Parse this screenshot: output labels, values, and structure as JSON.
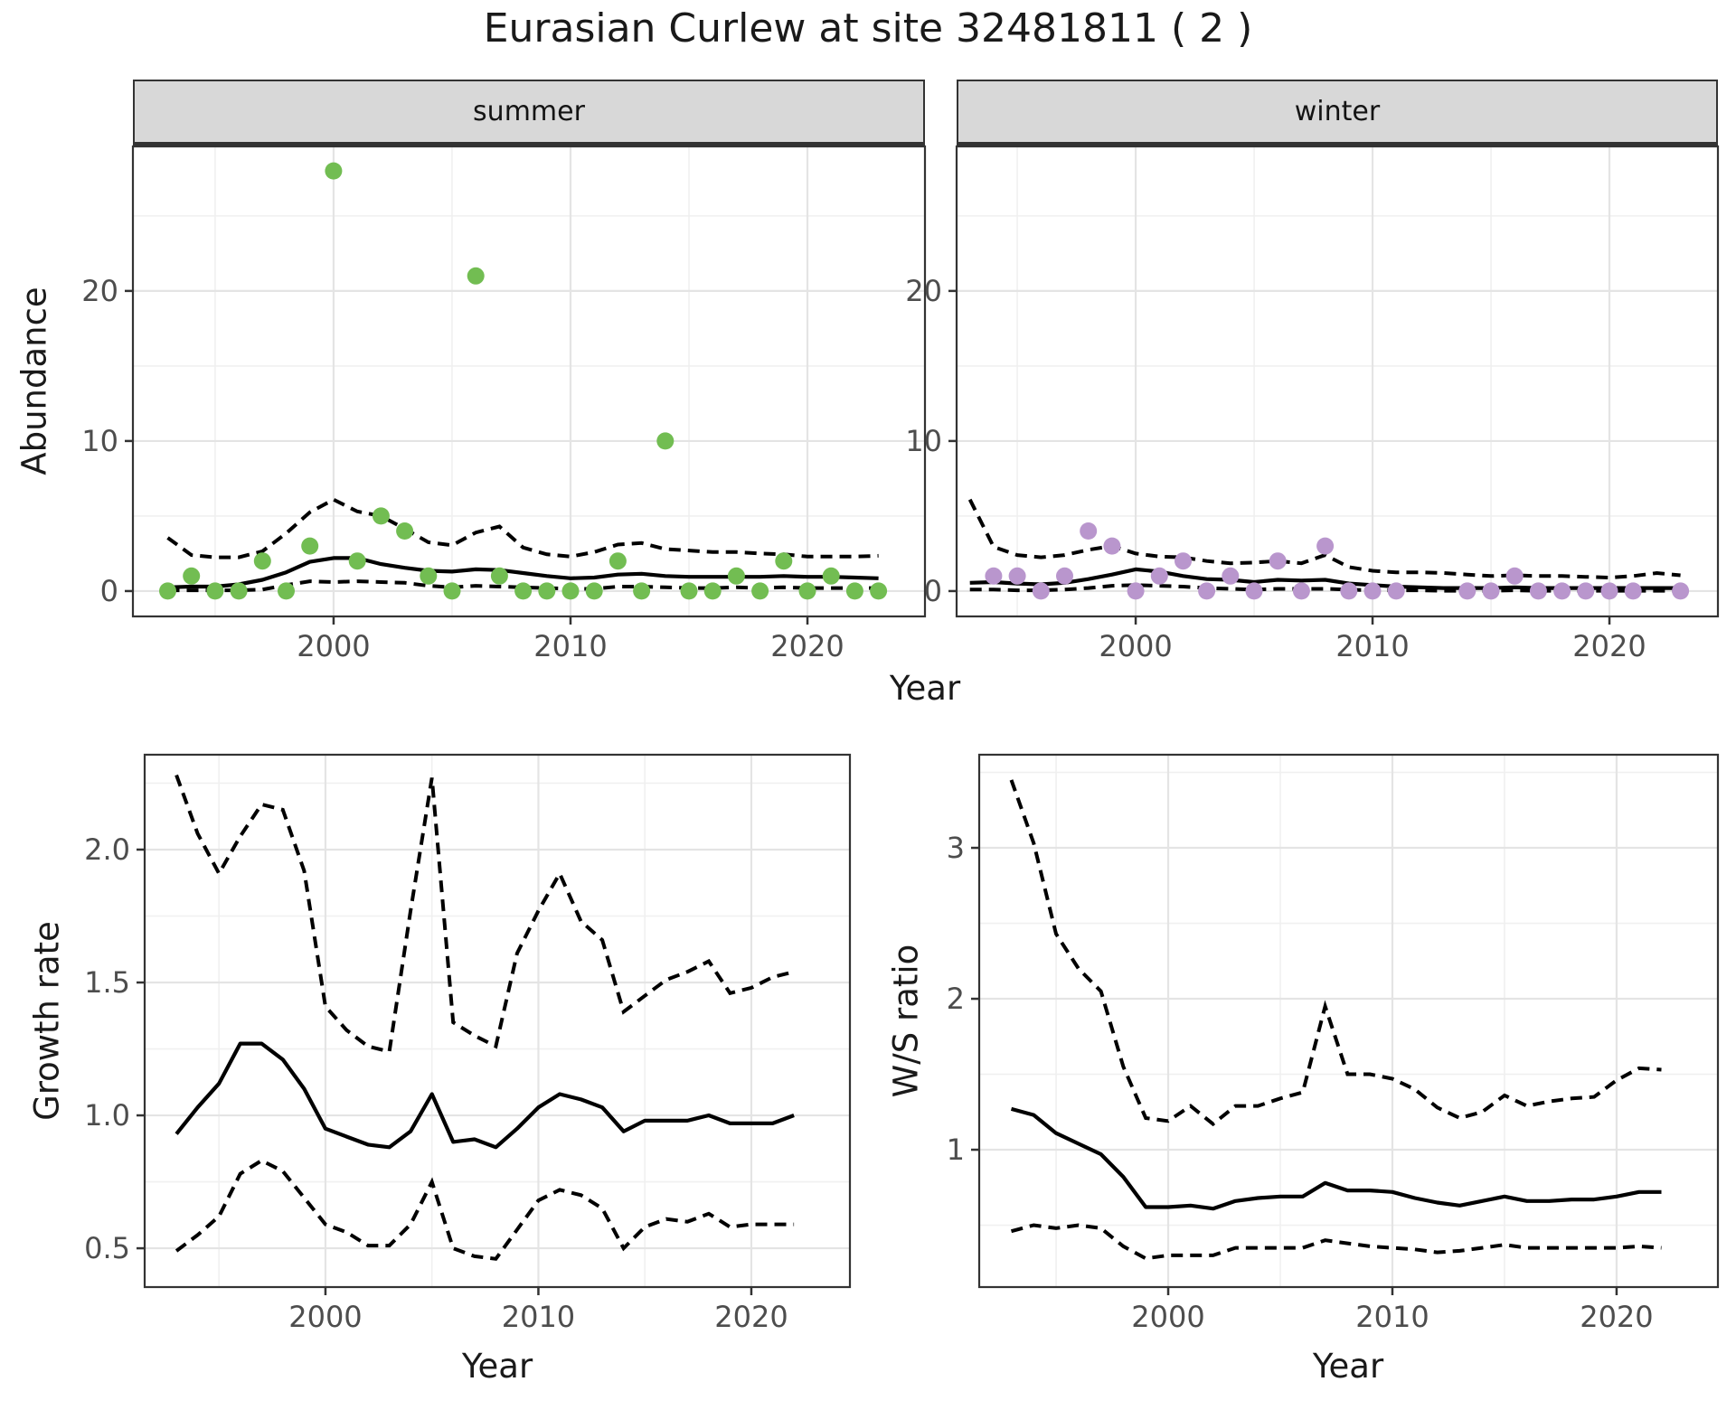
{
  "title": "Eurasian Curlew at site 32481811 ( 2 )",
  "facets": [
    {
      "label": "summer"
    },
    {
      "label": "winter"
    }
  ],
  "axes": {
    "x": "Year",
    "abundance": "Abundance",
    "growth": "Growth rate",
    "ws": "W/S ratio"
  },
  "colors": {
    "summer_point": "#72BD52",
    "winter_point": "#B996CD",
    "line": "#000000",
    "grid_major": "#e4e4e4",
    "grid_minor": "#f0f0f0",
    "panel_border": "#333333",
    "tick_text": "#4d4d4d",
    "strip_bg": "#d8d8d8"
  },
  "chart_data": [
    {
      "id": "abundance_summer",
      "type": "scatter",
      "facet": "summer",
      "xlabel": "Year",
      "ylabel": "Abundance",
      "grid": true,
      "legend": "none",
      "point_color": "#72BD52",
      "xlim": [
        1991.53,
        2024.96
      ],
      "ylim": [
        -1.69,
        29.63
      ],
      "x_major": [
        2000,
        2010,
        2020
      ],
      "x_minor": [
        1995,
        2005,
        2015
      ],
      "y_major": [
        0,
        10,
        20
      ],
      "y_minor": [
        5,
        15,
        25
      ],
      "x_tick_labels": [
        "2000",
        "2010",
        "2020"
      ],
      "y_tick_labels": [
        "0",
        "10",
        "20"
      ],
      "points": {
        "years": [
          1993,
          1994,
          1995,
          1996,
          1997,
          1998,
          1999,
          2000,
          2001,
          2002,
          2003,
          2004,
          2005,
          2006,
          2007,
          2008,
          2009,
          2010,
          2011,
          2012,
          2013,
          2014,
          2015,
          2016,
          2017,
          2018,
          2019,
          2020,
          2021,
          2022,
          2023
        ],
        "values": [
          0,
          1,
          0,
          0,
          2,
          0,
          3,
          28,
          2,
          5,
          4,
          1,
          0,
          21,
          1,
          0,
          0,
          0,
          0,
          2,
          0,
          10,
          0,
          0,
          1,
          0,
          2,
          0,
          1,
          0,
          0
        ]
      },
      "mean": {
        "years": [
          1993,
          1994,
          1995,
          1996,
          1997,
          1998,
          1999,
          2000,
          2001,
          2002,
          2003,
          2004,
          2005,
          2006,
          2007,
          2008,
          2009,
          2010,
          2011,
          2012,
          2013,
          2014,
          2015,
          2016,
          2017,
          2018,
          2019,
          2020,
          2021,
          2022,
          2023
        ],
        "values": [
          0.25,
          0.3,
          0.3,
          0.45,
          0.75,
          1.25,
          1.95,
          2.2,
          2.2,
          1.8,
          1.55,
          1.35,
          1.3,
          1.45,
          1.4,
          1.2,
          1.0,
          0.85,
          0.9,
          1.1,
          1.15,
          1.0,
          0.95,
          0.95,
          0.95,
          0.95,
          1.0,
          0.95,
          0.95,
          0.9,
          0.85
        ]
      },
      "upper": {
        "years": [
          1993,
          1994,
          1995,
          1996,
          1997,
          1998,
          1999,
          2000,
          2001,
          2002,
          2003,
          2004,
          2005,
          2006,
          2007,
          2008,
          2009,
          2010,
          2011,
          2012,
          2013,
          2014,
          2015,
          2016,
          2017,
          2018,
          2019,
          2020,
          2021,
          2022,
          2023
        ],
        "values": [
          3.55,
          2.4,
          2.25,
          2.25,
          2.65,
          3.85,
          5.25,
          6.1,
          5.3,
          5.0,
          4.15,
          3.25,
          3.05,
          3.9,
          4.3,
          2.9,
          2.45,
          2.3,
          2.6,
          3.1,
          3.2,
          2.8,
          2.7,
          2.6,
          2.6,
          2.5,
          2.45,
          2.3,
          2.3,
          2.3,
          2.35
        ]
      },
      "lower": {
        "years": [
          1993,
          1994,
          1995,
          1996,
          1997,
          1998,
          1999,
          2000,
          2001,
          2002,
          2003,
          2004,
          2005,
          2006,
          2007,
          2008,
          2009,
          2010,
          2011,
          2012,
          2013,
          2014,
          2015,
          2016,
          2017,
          2018,
          2019,
          2020,
          2021,
          2022,
          2023
        ],
        "values": [
          0.05,
          0.05,
          0.05,
          0.05,
          0.1,
          0.4,
          0.65,
          0.6,
          0.65,
          0.6,
          0.55,
          0.35,
          0.25,
          0.35,
          0.3,
          0.25,
          0.2,
          0.15,
          0.15,
          0.3,
          0.3,
          0.25,
          0.2,
          0.2,
          0.25,
          0.2,
          0.25,
          0.2,
          0.2,
          0.2,
          0.2
        ]
      }
    },
    {
      "id": "abundance_winter",
      "type": "scatter",
      "facet": "winter",
      "xlabel": "Year",
      "ylabel": "Abundance",
      "grid": true,
      "legend": "none",
      "point_color": "#B996CD",
      "xlim": [
        1992.44,
        2024.58
      ],
      "ylim": [
        -1.69,
        29.63
      ],
      "x_major": [
        2000,
        2010,
        2020
      ],
      "x_minor": [
        1995,
        2005,
        2015
      ],
      "y_major": [
        0,
        10,
        20
      ],
      "y_minor": [
        5,
        15,
        25
      ],
      "x_tick_labels": [
        "2000",
        "2010",
        "2020"
      ],
      "y_tick_labels": [
        "0",
        "10",
        "20"
      ],
      "points": {
        "years": [
          1994,
          1995,
          1996,
          1997,
          1998,
          1999,
          2000,
          2001,
          2002,
          2003,
          2004,
          2005,
          2006,
          2007,
          2008,
          2009,
          2010,
          2011,
          2014,
          2015,
          2016,
          2017,
          2018,
          2019,
          2020,
          2021,
          2023
        ],
        "values": [
          1,
          1,
          0,
          1,
          4,
          3,
          0,
          1,
          2,
          0,
          1,
          0,
          2,
          0,
          3,
          0,
          0,
          0,
          0,
          0,
          1,
          0,
          0,
          0,
          0,
          0,
          0
        ]
      },
      "mean": {
        "years": [
          1993,
          1994,
          1995,
          1996,
          1997,
          1998,
          1999,
          2000,
          2001,
          2002,
          2003,
          2004,
          2005,
          2006,
          2007,
          2008,
          2009,
          2010,
          2011,
          2012,
          2013,
          2014,
          2015,
          2016,
          2017,
          2018,
          2019,
          2020,
          2021,
          2022,
          2023
        ],
        "values": [
          0.55,
          0.6,
          0.5,
          0.45,
          0.55,
          0.8,
          1.1,
          1.45,
          1.3,
          1.0,
          0.8,
          0.75,
          0.6,
          0.75,
          0.7,
          0.75,
          0.5,
          0.4,
          0.3,
          0.25,
          0.2,
          0.2,
          0.2,
          0.25,
          0.2,
          0.2,
          0.2,
          0.2,
          0.2,
          0.2,
          0.2
        ]
      },
      "upper": {
        "years": [
          1993,
          1994,
          1995,
          1996,
          1997,
          1998,
          1999,
          2000,
          2001,
          2002,
          2003,
          2004,
          2005,
          2006,
          2007,
          2008,
          2009,
          2010,
          2011,
          2012,
          2013,
          2014,
          2015,
          2016,
          2017,
          2018,
          2019,
          2020,
          2021,
          2022,
          2023
        ],
        "values": [
          6.1,
          2.95,
          2.4,
          2.25,
          2.4,
          2.75,
          3.0,
          2.5,
          2.3,
          2.25,
          2.0,
          1.85,
          1.9,
          2.0,
          1.85,
          2.4,
          1.6,
          1.35,
          1.25,
          1.25,
          1.2,
          1.1,
          1.0,
          1.05,
          1.0,
          1.0,
          0.95,
          0.9,
          1.0,
          1.2,
          1.05
        ]
      },
      "lower": {
        "years": [
          1993,
          1994,
          1995,
          1996,
          1997,
          1998,
          1999,
          2000,
          2001,
          2002,
          2003,
          2004,
          2005,
          2006,
          2007,
          2008,
          2009,
          2010,
          2011,
          2012,
          2013,
          2014,
          2015,
          2016,
          2017,
          2018,
          2019,
          2020,
          2021,
          2022,
          2023
        ],
        "values": [
          0.1,
          0.1,
          0.05,
          0.05,
          0.1,
          0.2,
          0.35,
          0.4,
          0.35,
          0.3,
          0.2,
          0.15,
          0.1,
          0.15,
          0.15,
          0.15,
          0.1,
          0.05,
          0.05,
          0.05,
          0.02,
          0.02,
          0.02,
          0.05,
          0.02,
          0.02,
          0.02,
          0.02,
          0.02,
          0.02,
          0.02
        ]
      }
    },
    {
      "id": "growth",
      "type": "line",
      "facet": "",
      "xlabel": "Year",
      "ylabel": "Growth rate",
      "grid": true,
      "legend": "none",
      "point_color": "",
      "xlim": [
        1991.51,
        2024.63
      ],
      "ylim": [
        0.354,
        2.357
      ],
      "x_major": [
        2000,
        2010,
        2020
      ],
      "x_minor": [
        1995,
        2005,
        2015
      ],
      "y_major": [
        0.5,
        1.0,
        1.5,
        2.0
      ],
      "y_minor": [
        0.75,
        1.25,
        1.75,
        2.25
      ],
      "x_tick_labels": [
        "2000",
        "2010",
        "2020"
      ],
      "y_tick_labels": [
        "0.5",
        "1.0",
        "1.5",
        "2.0"
      ],
      "points": {
        "years": [],
        "values": []
      },
      "mean": {
        "years": [
          1993,
          1994,
          1995,
          1996,
          1997,
          1998,
          1999,
          2000,
          2001,
          2002,
          2003,
          2004,
          2005,
          2006,
          2007,
          2008,
          2009,
          2010,
          2011,
          2012,
          2013,
          2014,
          2015,
          2016,
          2017,
          2018,
          2019,
          2020,
          2021,
          2022
        ],
        "values": [
          0.93,
          1.03,
          1.12,
          1.27,
          1.27,
          1.21,
          1.1,
          0.95,
          0.92,
          0.89,
          0.88,
          0.94,
          1.08,
          0.9,
          0.91,
          0.88,
          0.95,
          1.03,
          1.08,
          1.06,
          1.03,
          0.94,
          0.98,
          0.98,
          0.98,
          1.0,
          0.97,
          0.97,
          0.97,
          1.0
        ]
      },
      "upper": {
        "years": [
          1993,
          1994,
          1995,
          1996,
          1997,
          1998,
          1999,
          2000,
          2001,
          2002,
          2003,
          2004,
          2005,
          2006,
          2007,
          2008,
          2009,
          2010,
          2011,
          2012,
          2013,
          2014,
          2015,
          2016,
          2017,
          2018,
          2019,
          2020,
          2021,
          2022
        ],
        "values": [
          2.28,
          2.06,
          1.91,
          2.05,
          2.17,
          2.15,
          1.92,
          1.41,
          1.32,
          1.26,
          1.24,
          1.77,
          2.27,
          1.35,
          1.3,
          1.26,
          1.61,
          1.77,
          1.91,
          1.73,
          1.66,
          1.39,
          1.45,
          1.51,
          1.54,
          1.58,
          1.46,
          1.48,
          1.52,
          1.54
        ]
      },
      "lower": {
        "years": [
          1993,
          1994,
          1995,
          1996,
          1997,
          1998,
          1999,
          2000,
          2001,
          2002,
          2003,
          2004,
          2005,
          2006,
          2007,
          2008,
          2009,
          2010,
          2011,
          2012,
          2013,
          2014,
          2015,
          2016,
          2017,
          2018,
          2019,
          2020,
          2021,
          2022
        ],
        "values": [
          0.49,
          0.55,
          0.62,
          0.78,
          0.83,
          0.79,
          0.69,
          0.59,
          0.56,
          0.51,
          0.51,
          0.59,
          0.75,
          0.5,
          0.47,
          0.46,
          0.57,
          0.68,
          0.72,
          0.7,
          0.65,
          0.5,
          0.58,
          0.61,
          0.6,
          0.63,
          0.58,
          0.59,
          0.59,
          0.59
        ]
      }
    },
    {
      "id": "ws",
      "type": "line",
      "facet": "",
      "xlabel": "Year",
      "ylabel": "W/S ratio",
      "grid": true,
      "legend": "none",
      "point_color": "",
      "xlim": [
        1991.57,
        2024.52
      ],
      "ylim": [
        0.09,
        3.617
      ],
      "x_major": [
        2000,
        2010,
        2020
      ],
      "x_minor": [
        1995,
        2005,
        2015
      ],
      "y_major": [
        1,
        2,
        3
      ],
      "y_minor": [
        0.5,
        1.5,
        2.5,
        3.5
      ],
      "x_tick_labels": [
        "2000",
        "2010",
        "2020"
      ],
      "y_tick_labels": [
        "1",
        "2",
        "3"
      ],
      "points": {
        "years": [],
        "values": []
      },
      "mean": {
        "years": [
          1993,
          1994,
          1995,
          1996,
          1997,
          1998,
          1999,
          2000,
          2001,
          2002,
          2003,
          2004,
          2005,
          2006,
          2007,
          2008,
          2009,
          2010,
          2011,
          2012,
          2013,
          2014,
          2015,
          2016,
          2017,
          2018,
          2019,
          2020,
          2021,
          2022
        ],
        "values": [
          1.27,
          1.23,
          1.11,
          1.04,
          0.97,
          0.82,
          0.62,
          0.62,
          0.63,
          0.61,
          0.66,
          0.68,
          0.69,
          0.69,
          0.78,
          0.73,
          0.73,
          0.72,
          0.68,
          0.65,
          0.63,
          0.66,
          0.69,
          0.66,
          0.66,
          0.67,
          0.67,
          0.69,
          0.72,
          0.72
        ]
      },
      "upper": {
        "years": [
          1993,
          1994,
          1995,
          1996,
          1997,
          1998,
          1999,
          2000,
          2001,
          2002,
          2003,
          2004,
          2005,
          2006,
          2007,
          2008,
          2009,
          2010,
          2011,
          2012,
          2013,
          2014,
          2015,
          2016,
          2017,
          2018,
          2019,
          2020,
          2021,
          2022
        ],
        "values": [
          3.45,
          3.03,
          2.43,
          2.2,
          2.05,
          1.55,
          1.21,
          1.19,
          1.29,
          1.17,
          1.29,
          1.29,
          1.34,
          1.38,
          1.95,
          1.5,
          1.5,
          1.47,
          1.4,
          1.28,
          1.21,
          1.25,
          1.36,
          1.29,
          1.32,
          1.34,
          1.35,
          1.46,
          1.54,
          1.53
        ]
      },
      "lower": {
        "years": [
          1993,
          1994,
          1995,
          1996,
          1997,
          1998,
          1999,
          2000,
          2001,
          2002,
          2003,
          2004,
          2005,
          2006,
          2007,
          2008,
          2009,
          2010,
          2011,
          2012,
          2013,
          2014,
          2015,
          2016,
          2017,
          2018,
          2019,
          2020,
          2021,
          2022
        ],
        "values": [
          0.46,
          0.5,
          0.48,
          0.5,
          0.48,
          0.36,
          0.28,
          0.3,
          0.3,
          0.3,
          0.35,
          0.35,
          0.35,
          0.35,
          0.4,
          0.38,
          0.36,
          0.35,
          0.34,
          0.32,
          0.33,
          0.35,
          0.37,
          0.35,
          0.35,
          0.35,
          0.35,
          0.35,
          0.36,
          0.35
        ]
      }
    }
  ]
}
